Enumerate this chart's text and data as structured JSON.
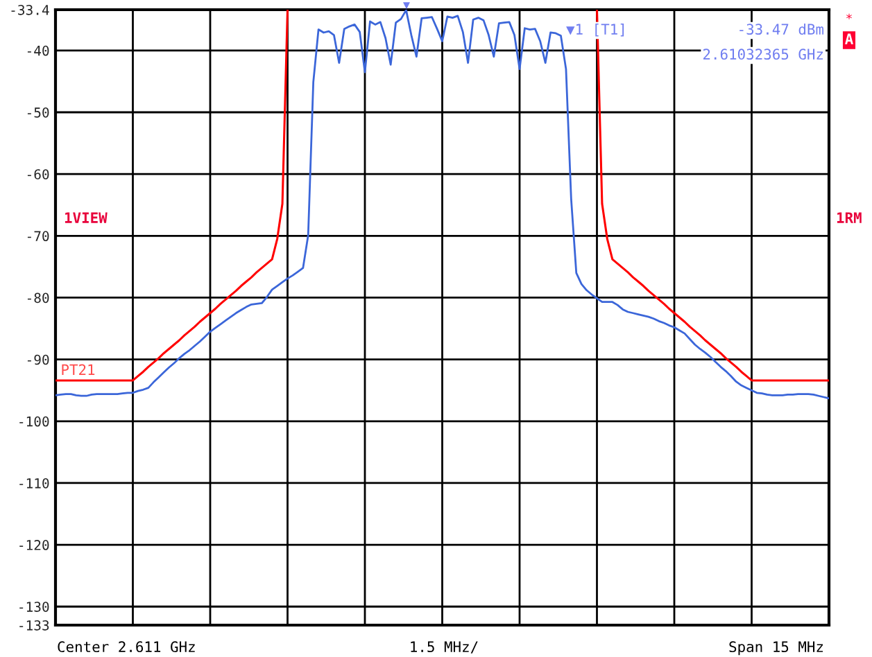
{
  "chart_data": {
    "type": "line",
    "categories": [
      null,
      null,
      null,
      null,
      null,
      null,
      null,
      null,
      null,
      null,
      null,
      null,
      null,
      null,
      null,
      null,
      null,
      null,
      null,
      null,
      null,
      null,
      null,
      null,
      null,
      null,
      null,
      null,
      null,
      null,
      null,
      null,
      null,
      null,
      null,
      null,
      null,
      null,
      null,
      null,
      null,
      null,
      null,
      null,
      null,
      null,
      null,
      null,
      null,
      null,
      null,
      null,
      null,
      null,
      null,
      null,
      null,
      null,
      null,
      null,
      null,
      null,
      null,
      null,
      null,
      null,
      null,
      null,
      null,
      null,
      null,
      null,
      null,
      null,
      null,
      null,
      null,
      null,
      null,
      null,
      null,
      null,
      null,
      null,
      null,
      null,
      null,
      null,
      null,
      null,
      null,
      null,
      null,
      null,
      null,
      null,
      null,
      null,
      null,
      null,
      null,
      null,
      null,
      null,
      null,
      null,
      null,
      null,
      null,
      null,
      null,
      null,
      null,
      null,
      null,
      null,
      null,
      null,
      null,
      null,
      null,
      null,
      null,
      null,
      null,
      null,
      null,
      null,
      null,
      null,
      null,
      null,
      null,
      null,
      null,
      null,
      null,
      null,
      null,
      null,
      null,
      null,
      null,
      null,
      null,
      null,
      null,
      null,
      null,
      null,
      null
    ],
    "ylim": [
      -133,
      -33.4
    ],
    "yticks": [
      -33.4,
      -40,
      -50,
      -60,
      -70,
      -80,
      -90,
      -100,
      -110,
      -120,
      -130,
      -133
    ],
    "grid": true,
    "legend": false,
    "series": [
      {
        "color": "#3b66d9",
        "values": [
          -95.8,
          -95.7,
          -95.6,
          -95.6,
          -95.8,
          -95.9,
          -95.9,
          -95.7,
          -95.6,
          -95.6,
          -95.6,
          -95.6,
          -95.6,
          -95.5,
          -95.4,
          -95.4,
          -95.1,
          -94.9,
          -94.6,
          -93.7,
          -92.9,
          -92.1,
          -91.3,
          -90.6,
          -89.8,
          -89.1,
          -88.5,
          -87.8,
          -87.1,
          -86.3,
          -85.5,
          -84.9,
          -84.3,
          -83.7,
          -83.1,
          -82.5,
          -82.0,
          -81.5,
          -81.1,
          -81.0,
          -80.9,
          -79.9,
          -78.7,
          -78.1,
          -77.5,
          -76.9,
          -76.4,
          -75.8,
          -75.2,
          -69.9,
          -45.1,
          -36.6,
          -37.1,
          -36.9,
          -37.5,
          -42.0,
          -36.5,
          -36.1,
          -35.8,
          -37.0,
          -43.5,
          -35.3,
          -35.8,
          -35.4,
          -38.0,
          -42.3,
          -35.5,
          -34.9,
          -33.47,
          -37.5,
          -41.0,
          -34.8,
          -34.7,
          -34.6,
          -36.5,
          -38.5,
          -34.5,
          -34.7,
          -34.4,
          -37.0,
          -42.0,
          -35.0,
          -34.7,
          -35.1,
          -37.5,
          -41.0,
          -35.6,
          -35.5,
          -35.4,
          -37.5,
          -43.0,
          -36.4,
          -36.6,
          -36.5,
          -38.5,
          -42.0,
          -37.1,
          -37.2,
          -37.6,
          -43.0,
          -64.0,
          -76.0,
          -77.8,
          -78.8,
          -79.5,
          -80.1,
          -80.7,
          -80.7,
          -80.7,
          -81.2,
          -81.9,
          -82.3,
          -82.5,
          -82.7,
          -82.9,
          -83.1,
          -83.4,
          -83.8,
          -84.1,
          -84.5,
          -84.8,
          -85.3,
          -85.8,
          -86.7,
          -87.6,
          -88.3,
          -88.9,
          -89.6,
          -90.4,
          -91.2,
          -91.9,
          -92.7,
          -93.6,
          -94.2,
          -94.6,
          -95.0,
          -95.4,
          -95.5,
          -95.7,
          -95.8,
          -95.8,
          -95.8,
          -95.7,
          -95.7,
          -95.6,
          -95.6,
          -95.6,
          -95.7,
          -95.9,
          -96.1,
          -96.3
        ]
      },
      {
        "name": "PT21",
        "color": "#ff0000",
        "values": [
          -93.4,
          -93.4,
          -93.4,
          -93.4,
          -93.4,
          -93.4,
          -93.4,
          -93.4,
          -93.4,
          -93.4,
          -93.4,
          -93.4,
          -93.4,
          -93.4,
          -93.4,
          -93.4,
          -92.7,
          -92.0,
          -91.2,
          -90.5,
          -89.8,
          -89.0,
          -88.3,
          -87.6,
          -86.9,
          -86.1,
          -85.4,
          -84.7,
          -83.9,
          -83.2,
          -82.5,
          -81.8,
          -81.0,
          -80.3,
          -79.6,
          -78.9,
          -78.1,
          -77.4,
          -76.7,
          -75.9,
          -75.2,
          -74.5,
          -73.8,
          -70.5,
          -64.8,
          -33.4,
          null,
          null,
          null,
          null,
          null,
          null,
          null,
          null,
          null,
          null,
          null,
          null,
          null,
          null,
          null,
          null,
          null,
          null,
          null,
          null,
          null,
          null,
          null,
          null,
          null,
          null,
          null,
          null,
          null,
          null,
          null,
          null,
          null,
          null,
          null,
          null,
          null,
          null,
          null,
          null,
          null,
          null,
          null,
          null,
          null,
          null,
          null,
          null,
          null,
          null,
          null,
          null,
          null,
          null,
          null,
          null,
          null,
          null,
          null,
          -33.4,
          -64.8,
          -70.5,
          -73.8,
          -74.5,
          -75.2,
          -75.9,
          -76.7,
          -77.4,
          -78.1,
          -78.9,
          -79.6,
          -80.3,
          -81.0,
          -81.8,
          -82.5,
          -83.2,
          -83.9,
          -84.7,
          -85.4,
          -86.1,
          -86.9,
          -87.6,
          -88.3,
          -89.0,
          -89.8,
          -90.5,
          -91.2,
          -92.0,
          -92.7,
          -93.4,
          -93.4,
          -93.4,
          -93.4,
          -93.4,
          -93.4,
          -93.4,
          -93.4,
          -93.4,
          -93.4,
          -93.4,
          -93.4,
          -93.4,
          -93.4,
          -93.4,
          -93.4
        ]
      }
    ],
    "annotations": [
      "1VIEW",
      "1RM",
      "▼1 [T1]",
      "-33.47 dBm",
      "2.61032365 GHz",
      "▼",
      "A",
      "*",
      "Center 2.611 GHz",
      "1.5 MHz/",
      "Span 15 MHz"
    ]
  }
}
